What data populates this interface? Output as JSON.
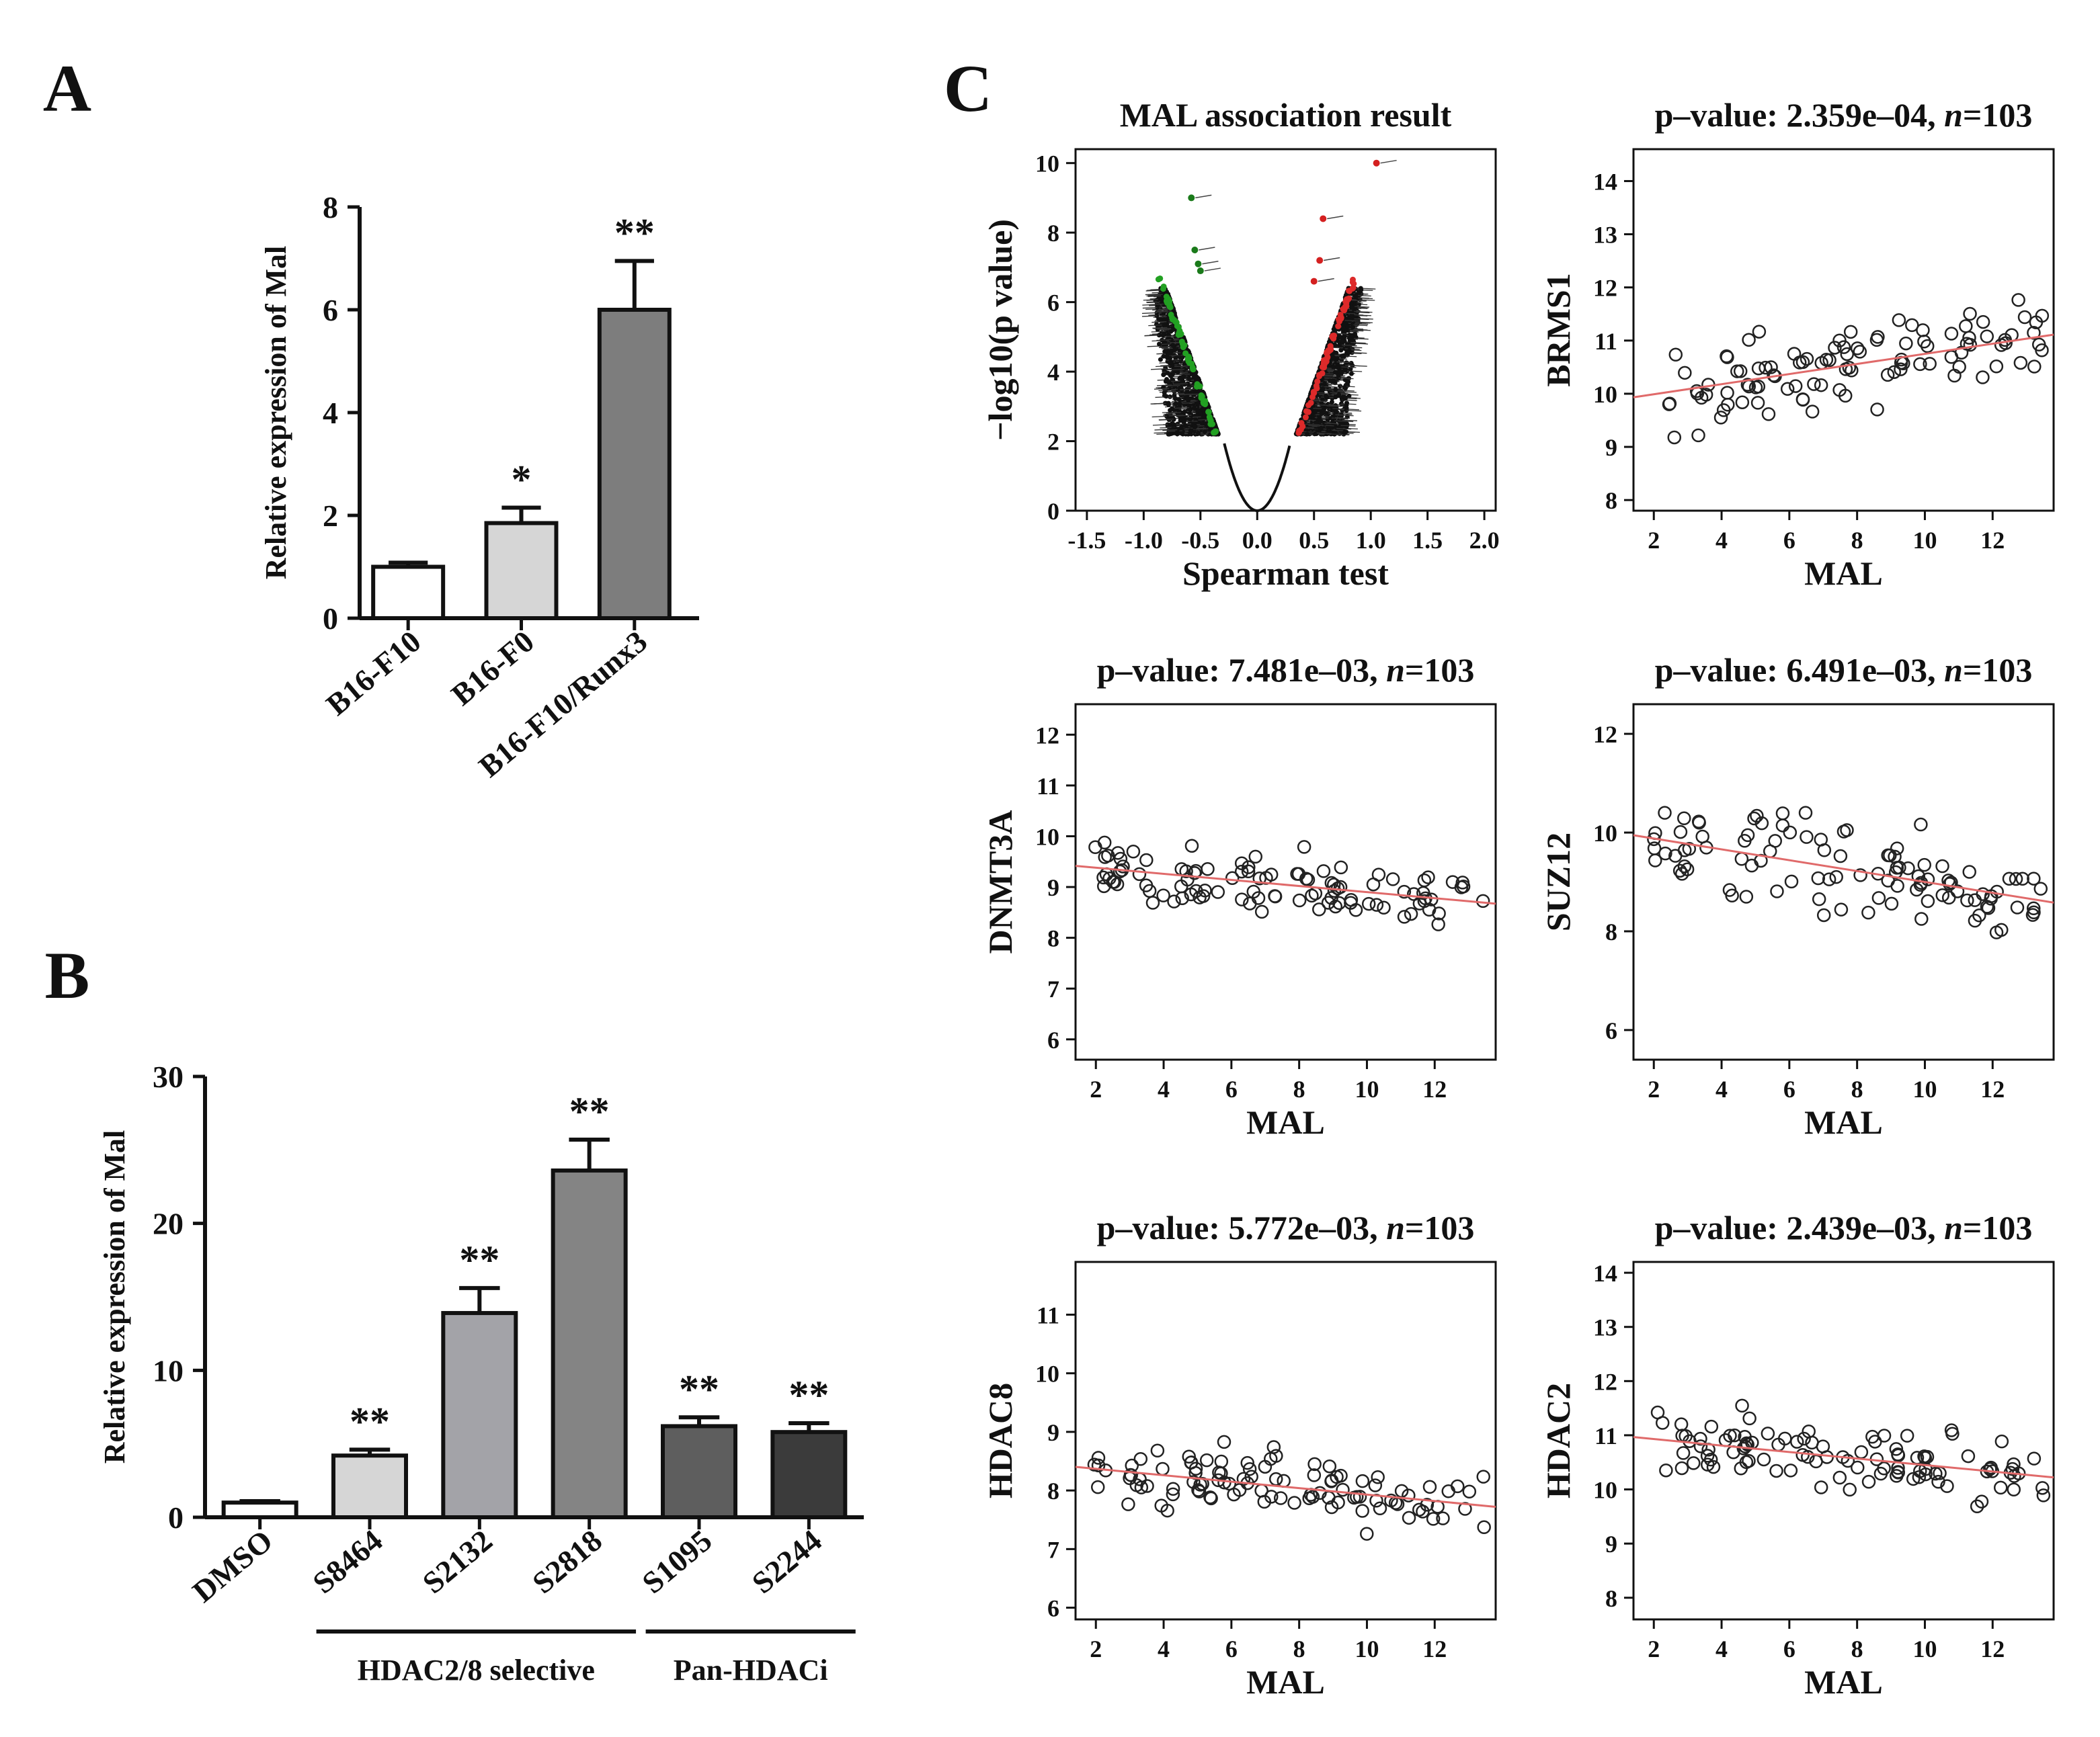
{
  "chart_data": [
    {
      "id": "A",
      "type": "bar",
      "panel_label": "A",
      "ylabel": "Relative expression of Mal",
      "ylim": [
        0,
        8
      ],
      "yticks": [
        0,
        2,
        4,
        6,
        8
      ],
      "categories": [
        "B16-F10",
        "B16-F0",
        "B16-F10/Runx3"
      ],
      "values": [
        1.0,
        1.85,
        6.0
      ],
      "errors": [
        0.08,
        0.3,
        0.95
      ],
      "significance": [
        "",
        "*",
        "**"
      ],
      "bar_colors": [
        "#ffffff",
        "#d6d6d6",
        "#7d7d7d"
      ]
    },
    {
      "id": "B",
      "type": "bar",
      "panel_label": "B",
      "ylabel": "Relative expression of Mal",
      "ylim": [
        0,
        30
      ],
      "yticks": [
        0,
        10,
        20,
        30
      ],
      "categories": [
        "DMSO",
        "S8464",
        "S2132",
        "S2818",
        "S1095",
        "S2244"
      ],
      "values": [
        1.0,
        4.2,
        13.9,
        23.6,
        6.2,
        5.8
      ],
      "errors": [
        0.1,
        0.4,
        1.7,
        2.1,
        0.6,
        0.6
      ],
      "significance": [
        "",
        "**",
        "**",
        "**",
        "**",
        "**"
      ],
      "bar_colors": [
        "#ffffff",
        "#d6d6d6",
        "#a3a3a8",
        "#848484",
        "#5e5e5e",
        "#3b3b3b"
      ],
      "groups": [
        {
          "label": "HDAC2/8 selective",
          "from": 1,
          "to": 3
        },
        {
          "label": "Pan-HDACi",
          "from": 4,
          "to": 5
        }
      ]
    },
    {
      "id": "C-volcano",
      "type": "scatter",
      "panel_label": "C",
      "title": "MAL association result",
      "xlabel": "Spearman test",
      "ylabel": "−log10(p value)",
      "xlim": [
        -1.6,
        2.1
      ],
      "ylim": [
        0,
        10.4
      ],
      "xticks": [
        -1.5,
        -1.0,
        -0.5,
        0.0,
        0.5,
        1.0,
        1.5,
        2.0
      ],
      "xtick_labels": [
        "-1.5",
        "-1.0",
        "-0.5",
        "0.0",
        "0.5",
        "1.0",
        "1.5",
        "2.0"
      ],
      "yticks": [
        0,
        2,
        4,
        6,
        8,
        10
      ],
      "highlight_points": [
        {
          "x": -0.58,
          "y": 9.0,
          "color": "#1a7a1a"
        },
        {
          "x": -0.55,
          "y": 7.5,
          "color": "#1a7a1a"
        },
        {
          "x": -0.52,
          "y": 7.1,
          "color": "#1a7a1a"
        },
        {
          "x": -0.5,
          "y": 6.9,
          "color": "#1a7a1a"
        },
        {
          "x": 0.5,
          "y": 6.6,
          "color": "#d42020"
        },
        {
          "x": 0.55,
          "y": 7.2,
          "color": "#d42020"
        },
        {
          "x": 0.58,
          "y": 8.4,
          "color": "#d42020"
        },
        {
          "x": 1.05,
          "y": 10.0,
          "color": "#d42020"
        }
      ]
    },
    {
      "id": "C-BRMS1",
      "type": "scatter",
      "title_prefix": "p–value: 2.359e–04, ",
      "n_label": "n",
      "n_value": "=103",
      "xlabel": "MAL",
      "ylabel": "BRMS1",
      "xlim": [
        1.4,
        13.8
      ],
      "ylim": [
        7.8,
        14.6
      ],
      "xticks": [
        2,
        4,
        6,
        8,
        10,
        12
      ],
      "yticks": [
        8,
        9,
        10,
        11,
        12,
        13,
        14
      ],
      "fit": {
        "slope": 0.095,
        "intercept": 9.8
      },
      "seed": 11,
      "noise": 0.75
    },
    {
      "id": "C-DNMT3A",
      "type": "scatter",
      "title_prefix": "p–value: 7.481e–03, ",
      "n_label": "n",
      "n_value": "=103",
      "xlabel": "MAL",
      "ylabel": "DNMT3A",
      "xlim": [
        1.4,
        13.8
      ],
      "ylim": [
        5.6,
        12.6
      ],
      "xticks": [
        2,
        4,
        6,
        8,
        10,
        12
      ],
      "yticks": [
        6,
        7,
        8,
        9,
        10,
        11,
        12
      ],
      "fit": {
        "slope": -0.06,
        "intercept": 9.5
      },
      "seed": 23,
      "noise": 0.6
    },
    {
      "id": "C-SUZ12",
      "type": "scatter",
      "title_prefix": "p–value: 6.491e–03, ",
      "n_label": "n",
      "n_value": "=103",
      "xlabel": "MAL",
      "ylabel": "SUZ12",
      "xlim": [
        1.4,
        13.8
      ],
      "ylim": [
        5.4,
        12.6
      ],
      "xticks": [
        2,
        4,
        6,
        8,
        10,
        12
      ],
      "yticks": [
        6,
        8,
        10,
        12
      ],
      "fit": {
        "slope": -0.11,
        "intercept": 10.1
      },
      "seed": 37,
      "noise": 0.85
    },
    {
      "id": "C-HDAC8",
      "type": "scatter",
      "title_prefix": "p–value: 5.772e–03, ",
      "n_label": "n",
      "n_value": "=103",
      "xlabel": "MAL",
      "ylabel": "HDAC8",
      "xlim": [
        1.4,
        13.8
      ],
      "ylim": [
        5.8,
        11.9
      ],
      "xticks": [
        2,
        4,
        6,
        8,
        10,
        12
      ],
      "yticks": [
        6,
        7,
        8,
        9,
        10,
        11
      ],
      "fit": {
        "slope": -0.055,
        "intercept": 8.48
      },
      "seed": 41,
      "noise": 0.5
    },
    {
      "id": "C-HDAC2",
      "type": "scatter",
      "title_prefix": "p–value: 2.439e–03, ",
      "n_label": "n",
      "n_value": "=103",
      "xlabel": "MAL",
      "ylabel": "HDAC2",
      "xlim": [
        1.4,
        13.8
      ],
      "ylim": [
        7.6,
        14.2
      ],
      "xticks": [
        2,
        4,
        6,
        8,
        10,
        12
      ],
      "yticks": [
        8,
        9,
        10,
        11,
        12,
        13,
        14
      ],
      "fit": {
        "slope": -0.06,
        "intercept": 11.05
      },
      "seed": 53,
      "noise": 0.55
    }
  ]
}
